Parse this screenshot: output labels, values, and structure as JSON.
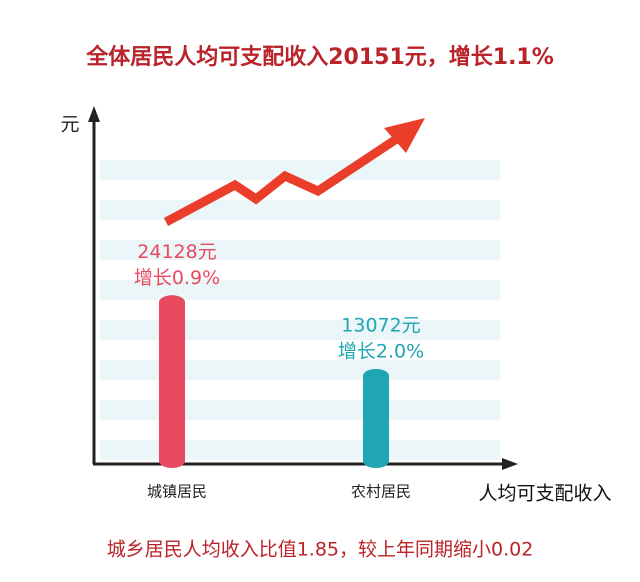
{
  "chart_data": {
    "type": "bar",
    "title": "全体居民人均可支配收入20151元，增长1.1%",
    "y_label": "元",
    "x_label": "人均可支配收入",
    "note": "城乡居民人均收入比值1.85，较上年同期缩小0.02",
    "categories": [
      "城镇居民",
      "农村居民"
    ],
    "values": [
      24128,
      13072
    ],
    "value_labels": [
      "24128元",
      "13072元"
    ],
    "growth": {
      "values": [
        0.9,
        2.0
      ],
      "value_labels": [
        "增长0.9%",
        "增长2.0%"
      ]
    },
    "colors": [
      "#e84a5f",
      "#1fa5b3"
    ],
    "ylim": [
      0,
      50000
    ]
  }
}
